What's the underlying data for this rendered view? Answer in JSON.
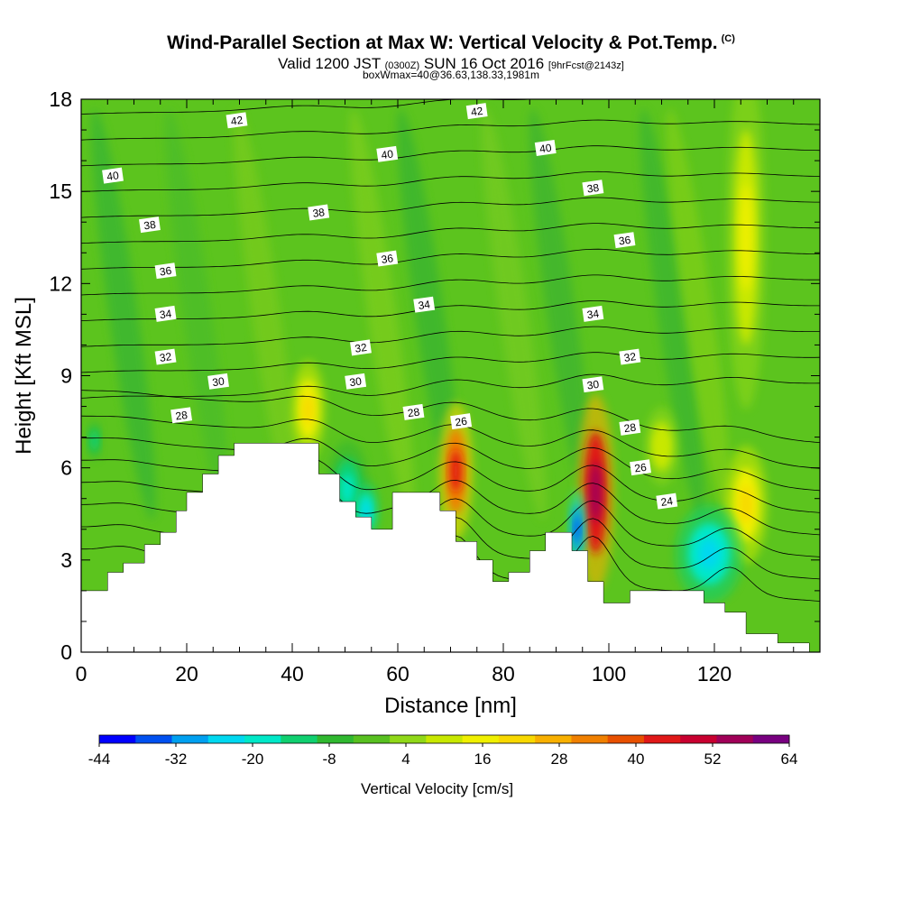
{
  "chart_data": {
    "type": "heatmap",
    "title": "Wind-Parallel Section at Max W: Vertical Velocity & Pot.Temp.",
    "title_mark": "(C)",
    "subtitle_main": "Valid 1200 JST",
    "subtitle_utc": "(0300Z)",
    "subtitle_date": "SUN 16 Oct 2016",
    "subtitle_fcst": "[9hrFcst@2143z]",
    "subtitle2": "boxWmax=40@36.63,138.33,1981m",
    "xlabel": "Distance [nm]",
    "ylabel": "Height [Kft MSL]",
    "xlim": [
      0,
      140
    ],
    "ylim": [
      0,
      18
    ],
    "x_ticks": [
      0,
      20,
      40,
      60,
      80,
      100,
      120
    ],
    "y_ticks": [
      0,
      3,
      6,
      9,
      12,
      15,
      18
    ],
    "colorbar": {
      "title": "Vertical Velocity [cm/s]",
      "labels": [
        "-44",
        "-32",
        "-20",
        "-8",
        "4",
        "16",
        "28",
        "40",
        "52",
        "64"
      ],
      "colors": [
        "#0000ff",
        "#0050f0",
        "#00a0f0",
        "#00d8f0",
        "#00e8c8",
        "#10d070",
        "#30b830",
        "#58c020",
        "#90d818",
        "#c8e800",
        "#f0f000",
        "#f8d800",
        "#f8b000",
        "#f08000",
        "#e85000",
        "#e01818",
        "#c80030",
        "#a00058",
        "#780080"
      ],
      "vmin": -44,
      "vmax": 64
    },
    "terrain_kft": [
      [
        0,
        2.0
      ],
      [
        5,
        2.0
      ],
      [
        5,
        2.6
      ],
      [
        8,
        2.6
      ],
      [
        8,
        2.9
      ],
      [
        12,
        2.9
      ],
      [
        12,
        3.5
      ],
      [
        15,
        3.5
      ],
      [
        15,
        3.9
      ],
      [
        18,
        3.9
      ],
      [
        18,
        4.6
      ],
      [
        20,
        4.6
      ],
      [
        20,
        5.2
      ],
      [
        23,
        5.2
      ],
      [
        23,
        5.8
      ],
      [
        26,
        5.8
      ],
      [
        26,
        6.4
      ],
      [
        29,
        6.4
      ],
      [
        29,
        6.8
      ],
      [
        45,
        6.8
      ],
      [
        45,
        5.8
      ],
      [
        49,
        5.8
      ],
      [
        49,
        4.9
      ],
      [
        52,
        4.9
      ],
      [
        52,
        4.4
      ],
      [
        55,
        4.4
      ],
      [
        55,
        4.0
      ],
      [
        59,
        4.0
      ],
      [
        59,
        5.2
      ],
      [
        62,
        5.2
      ],
      [
        62,
        5.2
      ],
      [
        68,
        5.2
      ],
      [
        68,
        4.6
      ],
      [
        71,
        4.6
      ],
      [
        71,
        3.6
      ],
      [
        75,
        3.6
      ],
      [
        75,
        3.0
      ],
      [
        78,
        3.0
      ],
      [
        78,
        2.3
      ],
      [
        81,
        2.3
      ],
      [
        81,
        2.6
      ],
      [
        85,
        2.6
      ],
      [
        85,
        3.3
      ],
      [
        88,
        3.3
      ],
      [
        88,
        3.9
      ],
      [
        93,
        3.9
      ],
      [
        93,
        3.3
      ],
      [
        96,
        3.3
      ],
      [
        96,
        2.3
      ],
      [
        99,
        2.3
      ],
      [
        99,
        1.6
      ],
      [
        104,
        1.6
      ],
      [
        104,
        2.0
      ],
      [
        118,
        2.0
      ],
      [
        118,
        1.6
      ],
      [
        122,
        1.6
      ],
      [
        122,
        1.3
      ],
      [
        126,
        1.3
      ],
      [
        126,
        0.6
      ],
      [
        132,
        0.6
      ],
      [
        132,
        0.3
      ],
      [
        138,
        0.3
      ],
      [
        138,
        0
      ],
      [
        0,
        0
      ]
    ],
    "isentrope_labels": [
      {
        "text": "42",
        "x": 29.5,
        "y": 17.3
      },
      {
        "text": "42",
        "x": 75,
        "y": 17.6
      },
      {
        "text": "40",
        "x": 6,
        "y": 15.5
      },
      {
        "text": "40",
        "x": 58,
        "y": 16.2
      },
      {
        "text": "40",
        "x": 88,
        "y": 16.4
      },
      {
        "text": "38",
        "x": 13,
        "y": 13.9
      },
      {
        "text": "38",
        "x": 45,
        "y": 14.3
      },
      {
        "text": "38",
        "x": 97,
        "y": 15.1
      },
      {
        "text": "36",
        "x": 16,
        "y": 12.4
      },
      {
        "text": "36",
        "x": 58,
        "y": 12.8
      },
      {
        "text": "36",
        "x": 103,
        "y": 13.4
      },
      {
        "text": "34",
        "x": 16,
        "y": 11.0
      },
      {
        "text": "34",
        "x": 65,
        "y": 11.3
      },
      {
        "text": "34",
        "x": 97,
        "y": 11.0
      },
      {
        "text": "32",
        "x": 16,
        "y": 9.6
      },
      {
        "text": "32",
        "x": 53,
        "y": 9.9
      },
      {
        "text": "32",
        "x": 104,
        "y": 9.6
      },
      {
        "text": "30",
        "x": 26,
        "y": 8.8
      },
      {
        "text": "30",
        "x": 52,
        "y": 8.8
      },
      {
        "text": "30",
        "x": 97,
        "y": 8.7
      },
      {
        "text": "28",
        "x": 19,
        "y": 7.7
      },
      {
        "text": "28",
        "x": 63,
        "y": 7.8
      },
      {
        "text": "28",
        "x": 104,
        "y": 7.3
      },
      {
        "text": "26",
        "x": 72,
        "y": 7.5
      },
      {
        "text": "26",
        "x": 106,
        "y": 6.0
      },
      {
        "text": "24",
        "x": 111,
        "y": 4.9
      }
    ],
    "velocity_features": [
      {
        "x": 43,
        "y": 7.9,
        "rx": 2.0,
        "ry": 1.0,
        "value": 24
      },
      {
        "x": 71,
        "y": 5.9,
        "rx": 2.0,
        "ry": 1.4,
        "value": 44
      },
      {
        "x": 97.5,
        "y": 5.2,
        "rx": 2.2,
        "ry": 2.0,
        "value": 56
      },
      {
        "x": 126,
        "y": 4.8,
        "rx": 2.5,
        "ry": 1.2,
        "value": 24
      },
      {
        "x": 126,
        "y": 13.5,
        "rx": 2.3,
        "ry": 3.5,
        "value": 14
      },
      {
        "x": 110,
        "y": 6.7,
        "rx": 2.0,
        "ry": 0.8,
        "value": 12
      },
      {
        "x": 50.5,
        "y": 5.3,
        "rx": 2.5,
        "ry": 1.0,
        "value": -18
      },
      {
        "x": 54,
        "y": 4.6,
        "rx": 1.5,
        "ry": 0.6,
        "value": -22
      },
      {
        "x": 94,
        "y": 4.0,
        "rx": 1.0,
        "ry": 0.8,
        "value": -36
      },
      {
        "x": 119,
        "y": 3.2,
        "rx": 4.0,
        "ry": 1.0,
        "value": -26
      },
      {
        "x": 2.5,
        "y": 6.9,
        "rx": 0.8,
        "ry": 0.4,
        "value": -14
      }
    ]
  }
}
